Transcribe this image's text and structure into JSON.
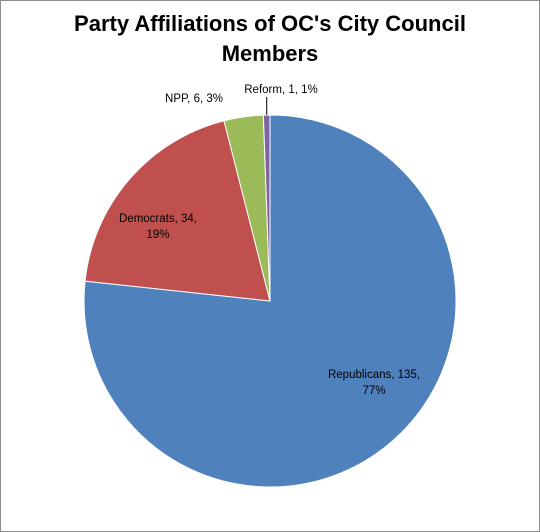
{
  "chart_data": {
    "type": "pie",
    "title_line1": "Party Affiliations of OC's City Council",
    "title_line2": "Members",
    "slices": [
      {
        "name": "Republicans",
        "value": 135,
        "percent": "77%",
        "color": "#4f81bd",
        "label_line1": "Republicans, 135,",
        "label_line2": "77%"
      },
      {
        "name": "Democrats",
        "value": 34,
        "percent": "19%",
        "color": "#c0504d",
        "label_line1": "Democrats, 34,",
        "label_line2": "19%"
      },
      {
        "name": "NPP",
        "value": 6,
        "percent": "3%",
        "color": "#9bbb59",
        "label_line1": "NPP, 6, 3%",
        "label_line2": ""
      },
      {
        "name": "Reform",
        "value": 1,
        "percent": "1%",
        "color": "#8064a2",
        "label_line1": "Reform, 1, 1%",
        "label_line2": ""
      }
    ],
    "legend": "none"
  }
}
